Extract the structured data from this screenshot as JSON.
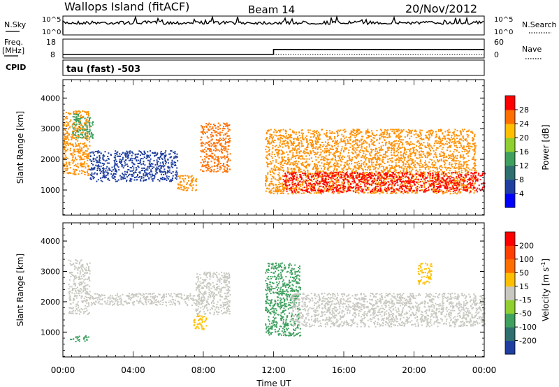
{
  "header": {
    "station": "Wallops Island (fitACF)",
    "beam": "Beam 14",
    "date": "20/Nov/2012"
  },
  "status_panel": {
    "nsky_label": "N.Sky",
    "nsky_ticks": [
      "10^5",
      "10^0"
    ],
    "nsearch_label": "N.Search",
    "nsearch_ticks": [
      "10^5",
      "10^0"
    ],
    "freq_label": "Freq.",
    "freq_unit": "[MHz]",
    "freq_ticks": [
      "18",
      "8"
    ],
    "nave_label": "Nave",
    "nave_ticks": [
      "60",
      "0"
    ],
    "cpid_label": "CPID",
    "cpid_text": "tau (fast) -503",
    "freq_step": {
      "time_hours": [
        0,
        12,
        24
      ],
      "freq_mhz": [
        9.9,
        12.5,
        12.5
      ]
    }
  },
  "chart_data": [
    {
      "type": "heatmap",
      "name": "power",
      "ylabel": "Slant Range [km]",
      "ylim": [
        180,
        4600
      ],
      "yticks": [
        "4000",
        "3000",
        "2000",
        "1000"
      ],
      "yticks_values": [
        4000,
        3000,
        2000,
        1000
      ],
      "xlim": [
        0,
        24
      ],
      "colorbar": {
        "label": "Power [dB]",
        "ticks": [
          "28",
          "24",
          "20",
          "16",
          "12",
          "8",
          "4"
        ],
        "colors": [
          "#0000ff",
          "#1f3fa0",
          "#2f6f6f",
          "#3fa05f",
          "#8fcf2f",
          "#ffbf00",
          "#ff6f00",
          "#ff0000"
        ]
      },
      "regions": [
        {
          "t0": 0.0,
          "t1": 1.5,
          "r0": 1500,
          "r1": 3600,
          "color": "#ff8f00"
        },
        {
          "t0": 0.5,
          "t1": 1.7,
          "r0": 2700,
          "r1": 3500,
          "color": "#3fa05f"
        },
        {
          "t0": 1.5,
          "t1": 6.5,
          "r0": 1300,
          "r1": 2300,
          "color": "#1f3fa0"
        },
        {
          "t0": 6.5,
          "t1": 7.6,
          "r0": 1000,
          "r1": 1500,
          "color": "#ff8f00"
        },
        {
          "t0": 7.8,
          "t1": 9.5,
          "r0": 1600,
          "r1": 3200,
          "color": "#ff6f00"
        },
        {
          "t0": 11.5,
          "t1": 23.5,
          "r0": 900,
          "r1": 3000,
          "color": "#ff8f00"
        },
        {
          "t0": 12.5,
          "t1": 24.0,
          "r0": 950,
          "r1": 1600,
          "color": "#ff0000"
        }
      ]
    },
    {
      "type": "heatmap",
      "name": "velocity",
      "ylabel": "Slant Range [km]",
      "ylim": [
        180,
        4600
      ],
      "yticks": [
        "4000",
        "3000",
        "2000",
        "1000"
      ],
      "yticks_values": [
        4000,
        3000,
        2000,
        1000
      ],
      "xlim": [
        0,
        24
      ],
      "xlabel": "Time UT",
      "xticks": [
        "00:00",
        "04:00",
        "08:00",
        "12:00",
        "16:00",
        "20:00",
        "00:00"
      ],
      "xticks_values": [
        0,
        4,
        8,
        12,
        16,
        20,
        24
      ],
      "colorbar": {
        "label": "Velocity [m s",
        "label_sup": "-1",
        "label_end": "]",
        "ticks": [
          "200",
          "100",
          "50",
          "15",
          "-15",
          "-50",
          "-100",
          "-200"
        ],
        "colors": [
          "#1f3fa0",
          "#2f6f6f",
          "#3fa05f",
          "#8fcf2f",
          "#c8c8c0",
          "#ffbf00",
          "#ff6f00",
          "#ff3f00",
          "#ff0000"
        ]
      },
      "regions": [
        {
          "t0": 0.3,
          "t1": 1.5,
          "r0": 1600,
          "r1": 3400,
          "color": "#c8c8c0"
        },
        {
          "t0": 0.4,
          "t1": 1.5,
          "r0": 700,
          "r1": 900,
          "color": "#3fa05f"
        },
        {
          "t0": 1.5,
          "t1": 8.0,
          "r0": 1900,
          "r1": 2300,
          "color": "#c8c8c0"
        },
        {
          "t0": 7.5,
          "t1": 9.5,
          "r0": 1600,
          "r1": 3000,
          "color": "#c8c8c0"
        },
        {
          "t0": 11.5,
          "t1": 13.5,
          "r0": 900,
          "r1": 3300,
          "color": "#3fa05f"
        },
        {
          "t0": 13.0,
          "t1": 24.0,
          "r0": 1200,
          "r1": 2300,
          "color": "#c8c8c0"
        },
        {
          "t0": 7.4,
          "t1": 8.2,
          "r0": 1100,
          "r1": 1600,
          "color": "#ffbf00"
        },
        {
          "t0": 20.2,
          "t1": 21.0,
          "r0": 2600,
          "r1": 3300,
          "color": "#ffbf00"
        }
      ]
    }
  ]
}
